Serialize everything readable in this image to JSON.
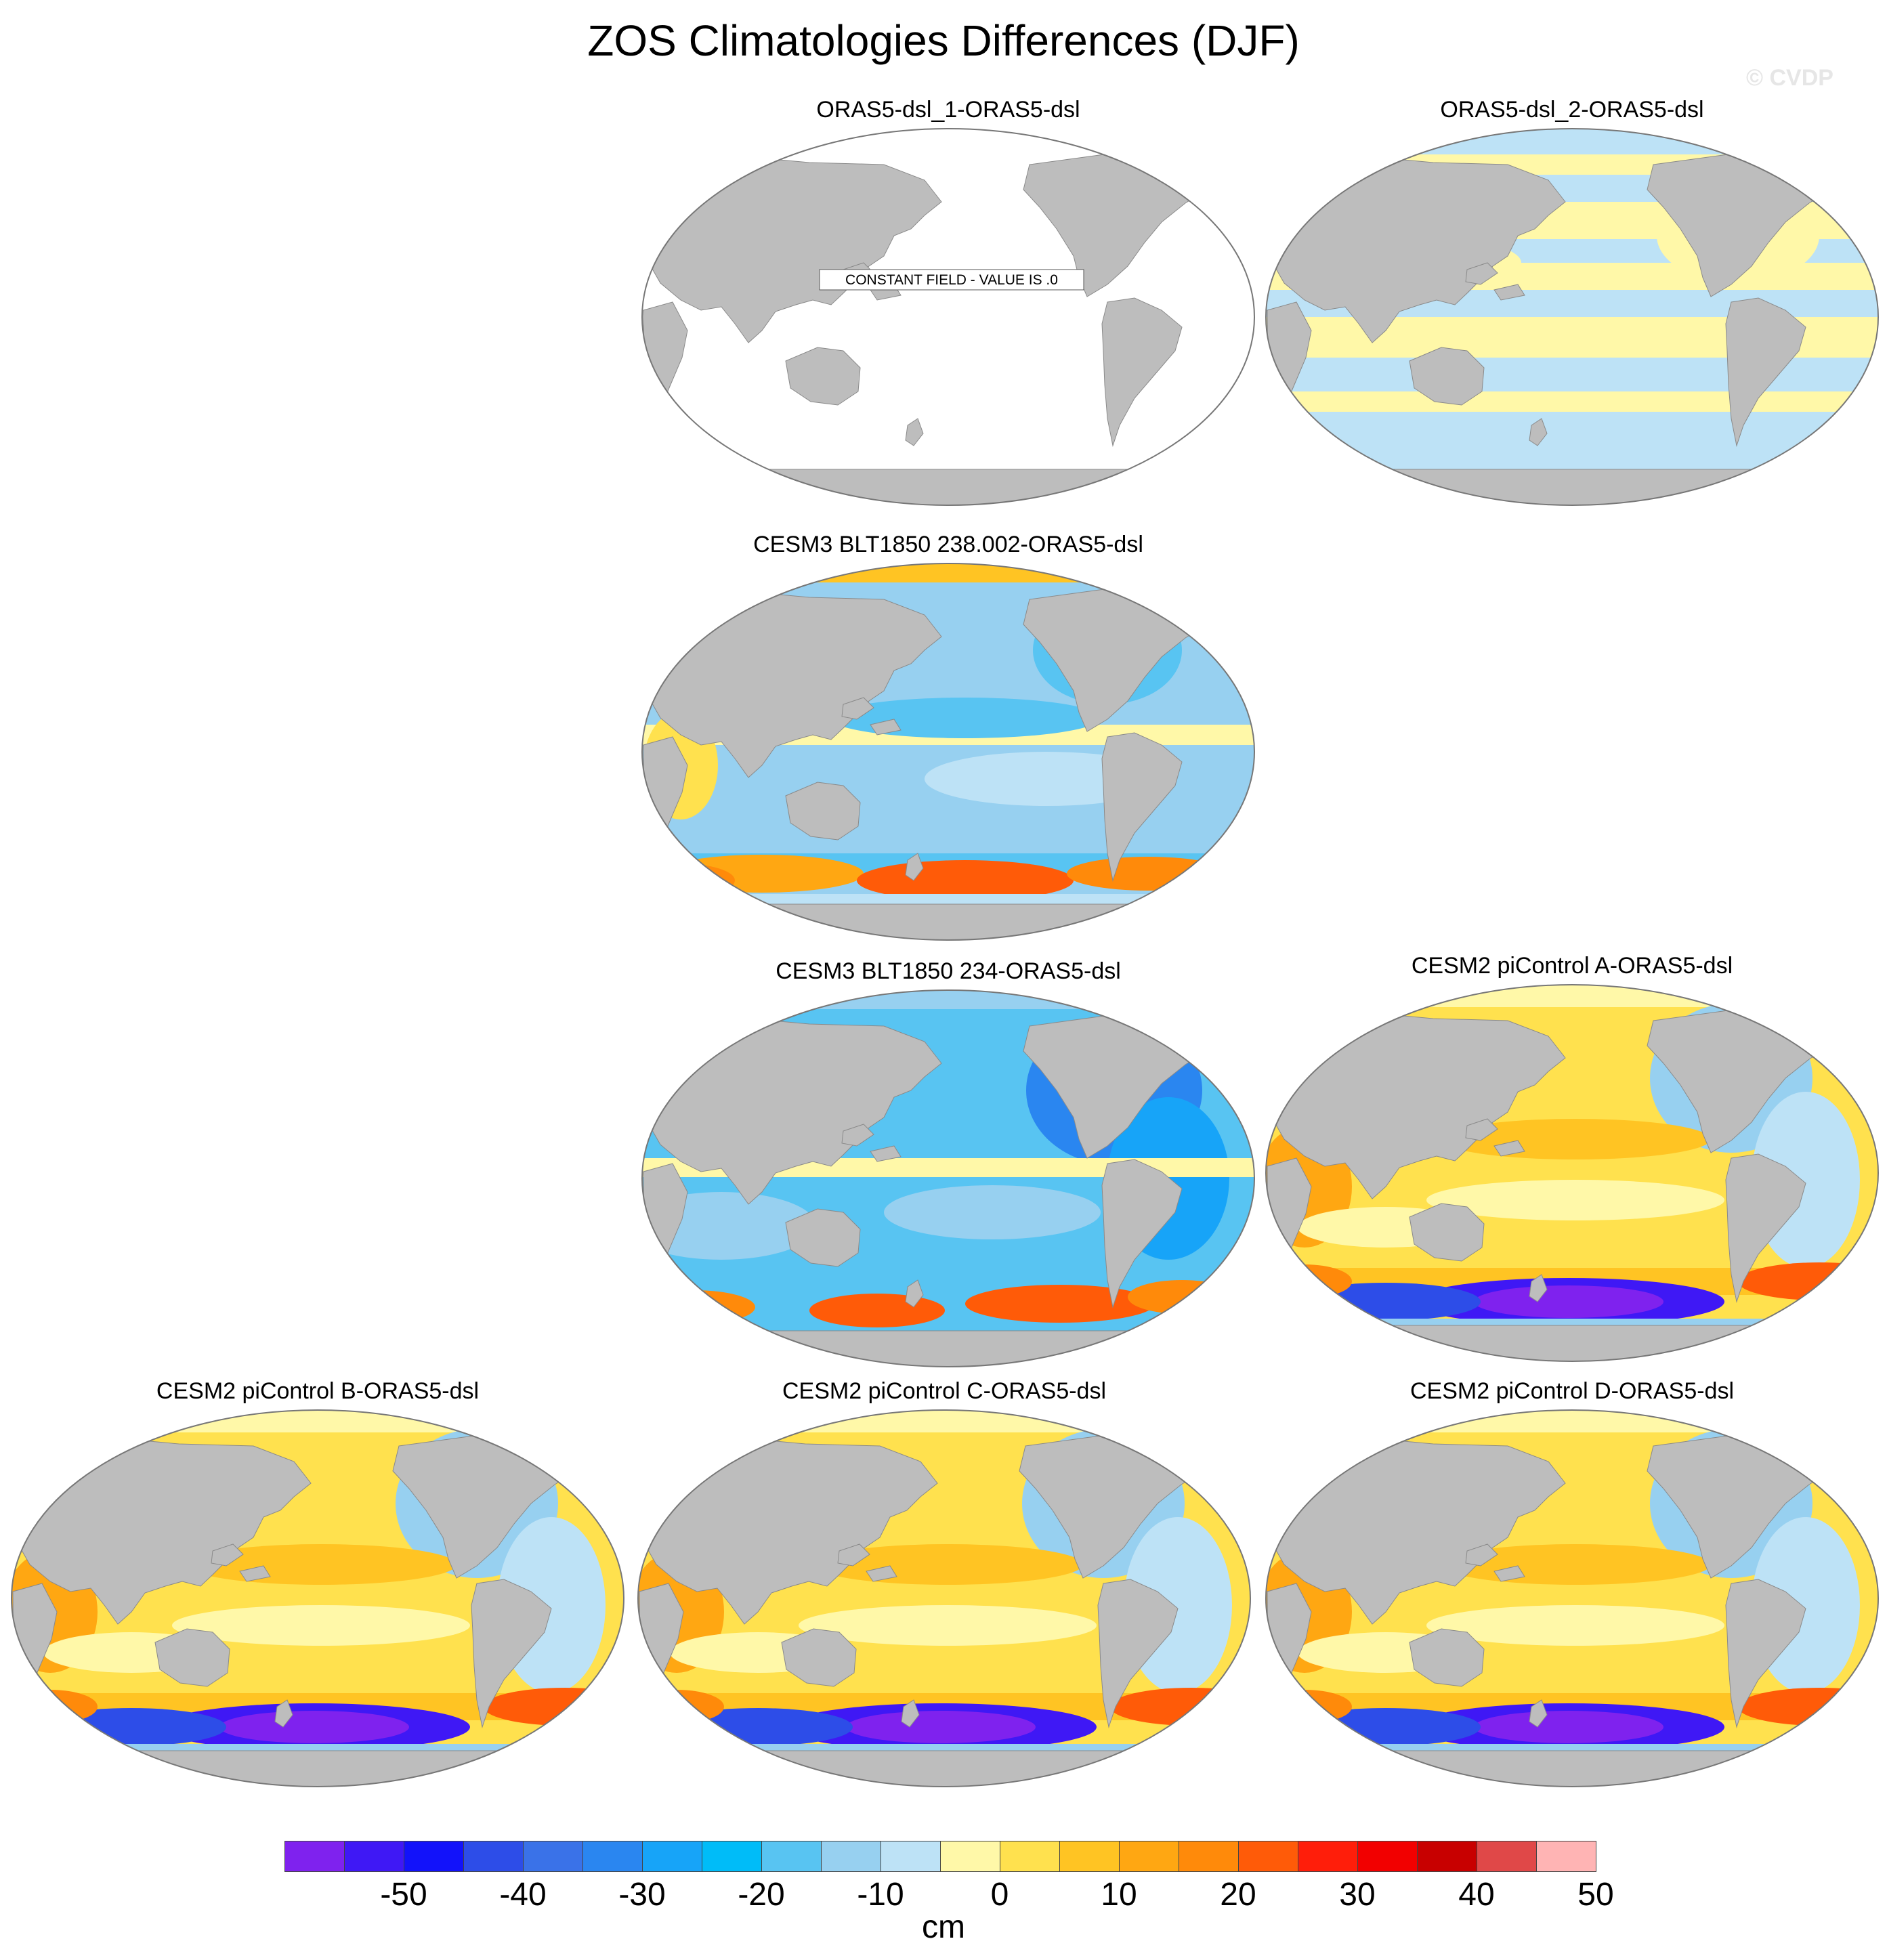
{
  "title": "ZOS Climatologies Differences (DJF)",
  "watermark": "© CVDP",
  "colors": {
    "land": "#bdbdbd",
    "ocean_zero": "#ffffff"
  },
  "panels": [
    {
      "title": "ORAS5-dsl_1-ORAS5-dsl",
      "pattern": "constant",
      "note": "CONSTANT FIELD - VALUE IS .0"
    },
    {
      "title": "ORAS5-dsl_2-ORAS5-dsl",
      "pattern": "weak"
    },
    {
      "title": "CESM3 BLT1850 238.002-ORAS5-dsl",
      "pattern": "cesm3"
    },
    {
      "title": "CESM3 BLT1850 234-ORAS5-dsl",
      "pattern": "cesm3b"
    },
    {
      "title": "CESM2 piControl A-ORAS5-dsl",
      "pattern": "cesm2"
    },
    {
      "title": "CESM2 piControl B-ORAS5-dsl",
      "pattern": "cesm2"
    },
    {
      "title": "CESM2 piControl C-ORAS5-dsl",
      "pattern": "cesm2"
    },
    {
      "title": "CESM2 piControl D-ORAS5-dsl",
      "pattern": "cesm2"
    }
  ],
  "colorbar": {
    "units": "cm",
    "colors": [
      "#7f22ee",
      "#3f18f5",
      "#1212fa",
      "#2d4de8",
      "#3a72e8",
      "#2a86f0",
      "#17a4f8",
      "#00bcf8",
      "#58c4f2",
      "#97d0f0",
      "#bde2f6",
      "#fff8a8",
      "#ffe14e",
      "#ffc423",
      "#ffa712",
      "#ff8a0a",
      "#ff5b08",
      "#ff1e0a",
      "#f20000",
      "#c80000",
      "#e04848",
      "#ffb4b4"
    ],
    "labels": [
      "-50",
      "-40",
      "-30",
      "-20",
      "-10",
      "0",
      "10",
      "20",
      "30",
      "40",
      "50"
    ]
  }
}
